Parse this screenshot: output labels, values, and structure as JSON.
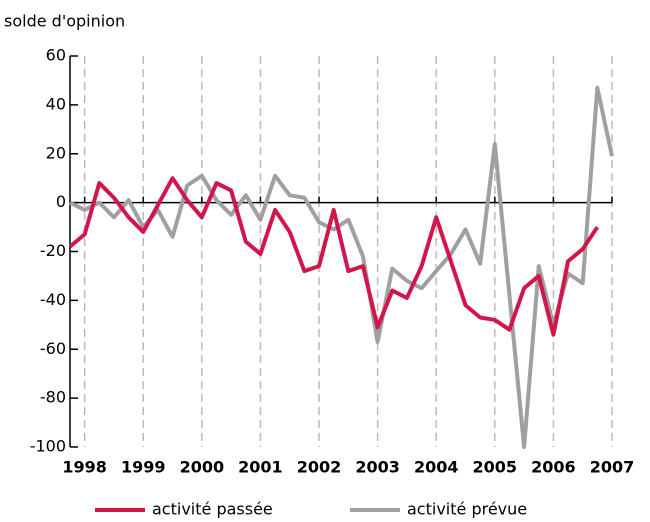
{
  "chart_data": {
    "type": "line",
    "y_label": "solde d'opinion",
    "x": [
      1997.75,
      1998,
      1998.25,
      1998.5,
      1998.75,
      1999,
      1999.25,
      1999.5,
      1999.75,
      2000,
      2000.25,
      2000.5,
      2000.75,
      2001,
      2001.25,
      2001.5,
      2001.75,
      2002,
      2002.25,
      2002.5,
      2002.75,
      2003,
      2003.25,
      2003.5,
      2003.75,
      2004,
      2004.25,
      2004.5,
      2004.75,
      2005,
      2005.25,
      2005.5,
      2005.75,
      2006,
      2006.25,
      2006.5,
      2006.75,
      2007
    ],
    "series": [
      {
        "name": "activité passée",
        "color": "#d0164a",
        "values": [
          -18,
          -13,
          8,
          2,
          -6,
          -12,
          -1,
          10,
          1,
          -6,
          8,
          5,
          -16,
          -21,
          -3,
          -12,
          -28,
          -26,
          -3,
          -28,
          -26,
          -51,
          -36,
          -39,
          -26,
          -6,
          -24,
          -42,
          -47,
          -48,
          -52,
          -35,
          -30,
          -54,
          -24,
          -19,
          -10,
          null
        ]
      },
      {
        "name": "activité prévue",
        "color": "#a0a0a0",
        "values": [
          0,
          -3,
          0,
          -6,
          1,
          -10,
          -3,
          -14,
          7,
          11,
          1,
          -5,
          3,
          -7,
          11,
          3,
          2,
          -8,
          -11,
          -7,
          -22,
          -57,
          -27,
          -32,
          -35,
          -28,
          -21,
          -11,
          -25,
          24,
          -38,
          -100,
          -26,
          -50,
          -29,
          -33,
          47,
          19
        ]
      }
    ],
    "xlim": [
      1997.75,
      2007
    ],
    "xticks": [
      1998,
      1999,
      2000,
      2001,
      2002,
      2003,
      2004,
      2005,
      2006,
      2007
    ],
    "ylim": [
      -100,
      60
    ],
    "yticks": [
      -100,
      -80,
      -60,
      -40,
      -20,
      0,
      20,
      40,
      60
    ]
  }
}
